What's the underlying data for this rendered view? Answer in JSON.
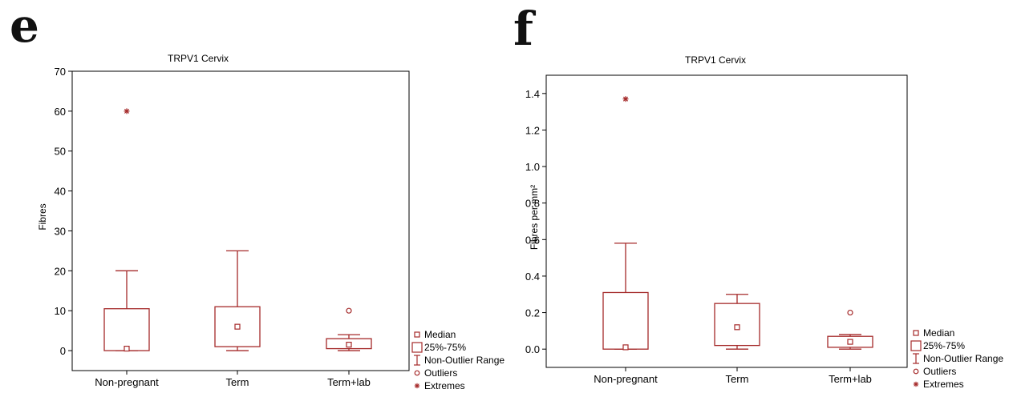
{
  "colors": {
    "mark": "#a52a2a",
    "frame": "#000000"
  },
  "legend": {
    "median": "Median",
    "box": "25%-75%",
    "whisker": "Non-Outlier Range",
    "outliers": "Outliers",
    "extremes": "Extremes"
  },
  "chart_data": [
    {
      "panel": "e",
      "type": "box",
      "title": "TRPV1 Cervix",
      "xlabel": "",
      "ylabel": "Fibres",
      "ylim": [
        -5,
        70
      ],
      "yticks": [
        0,
        10,
        20,
        30,
        40,
        50,
        60,
        70
      ],
      "ytick_labels": [
        "0",
        "10",
        "20",
        "30",
        "40",
        "50",
        "60",
        "70"
      ],
      "categories": [
        "Non-pregnant",
        "Term",
        "Term+lab"
      ],
      "boxes": [
        {
          "median": 0.5,
          "q1": 0,
          "q3": 10.5,
          "whisker_low": 0,
          "whisker_high": 20,
          "outliers": [],
          "extremes": [
            60
          ]
        },
        {
          "median": 6,
          "q1": 1,
          "q3": 11,
          "whisker_low": 0,
          "whisker_high": 25,
          "outliers": [],
          "extremes": []
        },
        {
          "median": 1.5,
          "q1": 0.5,
          "q3": 3,
          "whisker_low": 0,
          "whisker_high": 4,
          "outliers": [
            10
          ],
          "extremes": []
        }
      ]
    },
    {
      "panel": "f",
      "type": "box",
      "title": "TRPV1 Cervix",
      "xlabel": "",
      "ylabel": "Fibres per mm²",
      "ylim": [
        -0.1,
        1.5
      ],
      "yticks": [
        0,
        0.2,
        0.4,
        0.6,
        0.8,
        1.0,
        1.2,
        1.4
      ],
      "ytick_labels": [
        "0.0",
        "0.2",
        "0.4",
        "0.6",
        "0.8",
        "1.0",
        "1.2",
        "1.4"
      ],
      "categories": [
        "Non-pregnant",
        "Term",
        "Term+lab"
      ],
      "boxes": [
        {
          "median": 0.01,
          "q1": 0,
          "q3": 0.31,
          "whisker_low": 0,
          "whisker_high": 0.58,
          "outliers": [],
          "extremes": [
            1.37
          ]
        },
        {
          "median": 0.12,
          "q1": 0.02,
          "q3": 0.25,
          "whisker_low": 0,
          "whisker_high": 0.3,
          "outliers": [],
          "extremes": []
        },
        {
          "median": 0.04,
          "q1": 0.01,
          "q3": 0.07,
          "whisker_low": 0,
          "whisker_high": 0.08,
          "outliers": [
            0.2
          ],
          "extremes": []
        }
      ]
    }
  ]
}
